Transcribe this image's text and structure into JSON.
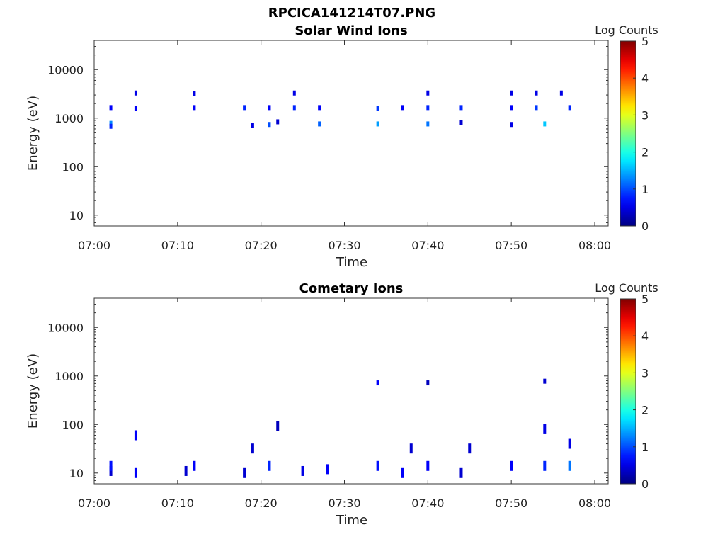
{
  "figure": {
    "title": "RPCICA141214T07.PNG"
  },
  "colorbar": {
    "label": "Log Counts",
    "ticks": [
      "0",
      "1",
      "2",
      "3",
      "4",
      "5"
    ],
    "range": [
      0,
      5
    ]
  },
  "chart_data": [
    {
      "type": "heatmap",
      "title": "Solar Wind Ions",
      "xlabel": "Time",
      "ylabel": "Energy (eV)",
      "xlim": [
        "07:00",
        "08:00"
      ],
      "x_ticks": [
        "07:00",
        "07:10",
        "07:20",
        "07:30",
        "07:40",
        "07:50",
        "08:00"
      ],
      "y_scale": "log",
      "ylim": [
        6,
        40000
      ],
      "y_ticks": [
        "10",
        "100",
        "1000",
        "10000"
      ],
      "y_tick_values": [
        10,
        100,
        1000,
        10000
      ],
      "colorbar_label": "Log Counts",
      "points": [
        {
          "t": "07:02",
          "e": 780,
          "v": 1.3
        },
        {
          "t": "07:02",
          "e": 680,
          "v": 0.8
        },
        {
          "t": "07:02",
          "e": 1650,
          "v": 0.6
        },
        {
          "t": "07:05",
          "e": 3300,
          "v": 0.5
        },
        {
          "t": "07:05",
          "e": 1600,
          "v": 0.6
        },
        {
          "t": "07:12",
          "e": 3200,
          "v": 0.5
        },
        {
          "t": "07:12",
          "e": 1650,
          "v": 0.6
        },
        {
          "t": "07:18",
          "e": 1650,
          "v": 0.8
        },
        {
          "t": "07:19",
          "e": 720,
          "v": 0.5
        },
        {
          "t": "07:21",
          "e": 1650,
          "v": 0.6
        },
        {
          "t": "07:21",
          "e": 740,
          "v": 1.0
        },
        {
          "t": "07:22",
          "e": 840,
          "v": 0.4
        },
        {
          "t": "07:24",
          "e": 3300,
          "v": 0.5
        },
        {
          "t": "07:24",
          "e": 1650,
          "v": 0.8
        },
        {
          "t": "07:27",
          "e": 1650,
          "v": 0.6
        },
        {
          "t": "07:27",
          "e": 760,
          "v": 1.1
        },
        {
          "t": "07:34",
          "e": 1600,
          "v": 0.9
        },
        {
          "t": "07:34",
          "e": 760,
          "v": 1.4
        },
        {
          "t": "07:37",
          "e": 1650,
          "v": 0.6
        },
        {
          "t": "07:40",
          "e": 3300,
          "v": 0.5
        },
        {
          "t": "07:40",
          "e": 1650,
          "v": 0.8
        },
        {
          "t": "07:40",
          "e": 760,
          "v": 1.2
        },
        {
          "t": "07:44",
          "e": 1650,
          "v": 0.8
        },
        {
          "t": "07:44",
          "e": 800,
          "v": 0.4
        },
        {
          "t": "07:50",
          "e": 3300,
          "v": 0.5
        },
        {
          "t": "07:50",
          "e": 1650,
          "v": 0.6
        },
        {
          "t": "07:50",
          "e": 740,
          "v": 0.5
        },
        {
          "t": "07:53",
          "e": 3300,
          "v": 0.5
        },
        {
          "t": "07:53",
          "e": 1650,
          "v": 0.9
        },
        {
          "t": "07:54",
          "e": 760,
          "v": 1.6
        },
        {
          "t": "07:56",
          "e": 3300,
          "v": 0.5
        },
        {
          "t": "07:57",
          "e": 1650,
          "v": 0.8
        }
      ]
    },
    {
      "type": "heatmap",
      "title": "Cometary Ions",
      "xlabel": "Time",
      "ylabel": "Energy (eV)",
      "xlim": [
        "07:00",
        "08:00"
      ],
      "x_ticks": [
        "07:00",
        "07:10",
        "07:20",
        "07:30",
        "07:40",
        "07:50",
        "08:00"
      ],
      "y_scale": "log",
      "ylim": [
        6,
        40000
      ],
      "y_ticks": [
        "10",
        "100",
        "1000",
        "10000"
      ],
      "y_tick_values": [
        10,
        100,
        1000,
        10000
      ],
      "colorbar_label": "Log Counts",
      "points": [
        {
          "t": "07:02",
          "e": 11,
          "v": 0.4
        },
        {
          "t": "07:02",
          "e": 14,
          "v": 0.7
        },
        {
          "t": "07:05",
          "e": 10,
          "v": 0.6
        },
        {
          "t": "07:05",
          "e": 60,
          "v": 0.6
        },
        {
          "t": "07:11",
          "e": 11,
          "v": 0.4
        },
        {
          "t": "07:12",
          "e": 14,
          "v": 0.6
        },
        {
          "t": "07:18",
          "e": 10,
          "v": 0.4
        },
        {
          "t": "07:19",
          "e": 32,
          "v": 0.4
        },
        {
          "t": "07:21",
          "e": 14,
          "v": 0.8
        },
        {
          "t": "07:22",
          "e": 92,
          "v": 0.3
        },
        {
          "t": "07:25",
          "e": 11,
          "v": 0.5
        },
        {
          "t": "07:28",
          "e": 12,
          "v": 0.6
        },
        {
          "t": "07:34",
          "e": 14,
          "v": 0.7
        },
        {
          "t": "07:34",
          "e": 720,
          "v": 0.6
        },
        {
          "t": "07:37",
          "e": 10,
          "v": 0.6
        },
        {
          "t": "07:38",
          "e": 32,
          "v": 0.4
        },
        {
          "t": "07:40",
          "e": 14,
          "v": 0.6
        },
        {
          "t": "07:40",
          "e": 720,
          "v": 0.3
        },
        {
          "t": "07:44",
          "e": 10,
          "v": 0.4
        },
        {
          "t": "07:45",
          "e": 32,
          "v": 0.4
        },
        {
          "t": "07:50",
          "e": 14,
          "v": 0.6
        },
        {
          "t": "07:54",
          "e": 14,
          "v": 0.8
        },
        {
          "t": "07:54",
          "e": 80,
          "v": 0.5
        },
        {
          "t": "07:54",
          "e": 780,
          "v": 0.4
        },
        {
          "t": "07:57",
          "e": 14,
          "v": 1.2
        },
        {
          "t": "07:57",
          "e": 40,
          "v": 0.5
        }
      ]
    }
  ]
}
